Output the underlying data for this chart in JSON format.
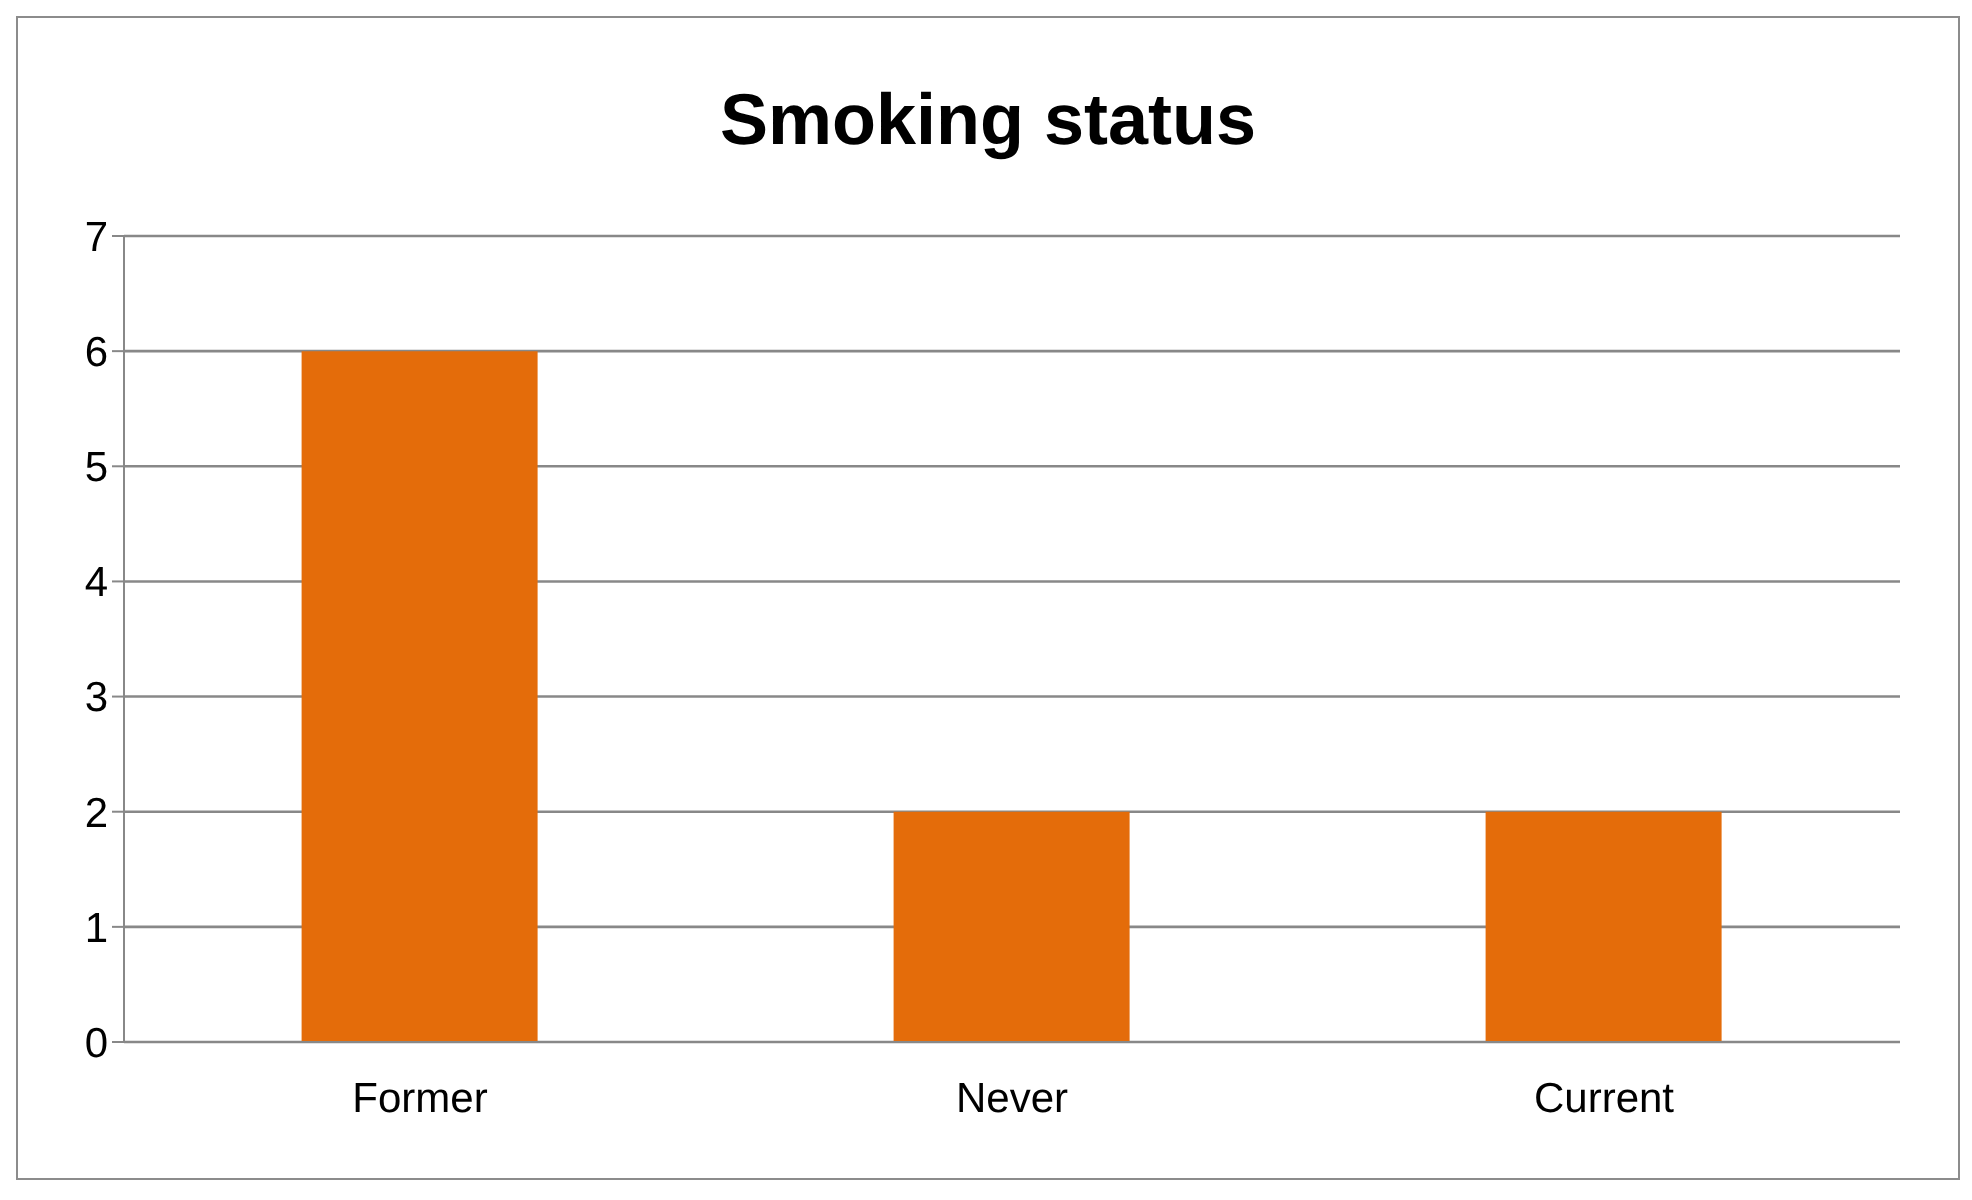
{
  "chart_data": {
    "type": "bar",
    "title": "Smoking status",
    "categories": [
      "Former",
      "Never",
      "Current"
    ],
    "values": [
      6,
      2,
      2
    ],
    "color": "#e46c0a",
    "ylim": [
      0,
      7
    ],
    "yticks": [
      0,
      1,
      2,
      3,
      4,
      5,
      6,
      7
    ],
    "grid": "y",
    "legend": false
  }
}
